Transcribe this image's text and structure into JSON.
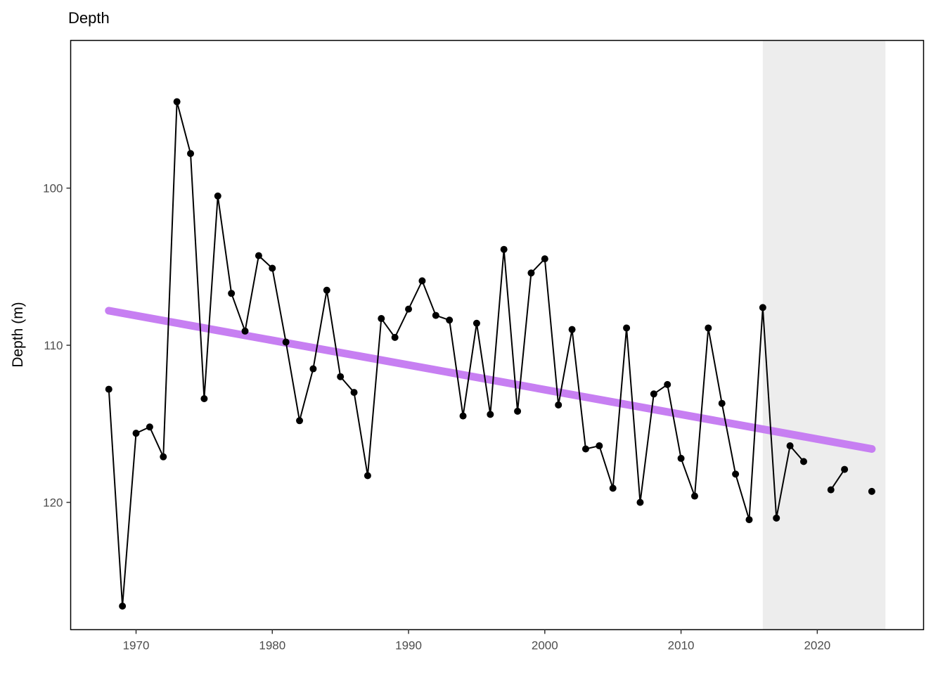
{
  "chart_data": {
    "type": "line",
    "title": "Depth",
    "xlabel": "",
    "ylabel": "Depth (m)",
    "y_reversed": true,
    "xlim": [
      1965.2,
      2027.8
    ],
    "ylim": [
      128.1,
      90.6
    ],
    "x_ticks": [
      1970,
      1980,
      1990,
      2000,
      2010,
      2020
    ],
    "y_ticks": [
      100,
      110,
      120
    ],
    "x_tick_labels": [
      "1970",
      "1980",
      "1990",
      "2000",
      "2010",
      "2020"
    ],
    "y_tick_labels": [
      "100",
      "110",
      "120"
    ],
    "grid": false,
    "legend": "none",
    "highlight_region": {
      "x": [
        2016,
        2025
      ],
      "color": "#ededed"
    },
    "series": [
      {
        "color": "#000000",
        "x": [
          1968,
          1969,
          1970,
          1971,
          1972,
          1973,
          1974,
          1975,
          1976,
          1977,
          1978,
          1979,
          1980,
          1981,
          1982,
          1983,
          1984,
          1985,
          1986,
          1987,
          1988,
          1989,
          1990,
          1991,
          1992,
          1993,
          1994,
          1995,
          1996,
          1997,
          1998,
          1999,
          2000,
          2001,
          2002,
          2003,
          2004,
          2005,
          2006,
          2007,
          2008,
          2009,
          2010,
          2011,
          2012,
          2013,
          2014,
          2015,
          2016,
          2017,
          2018,
          2019,
          2020,
          2021,
          2022,
          2023,
          2024
        ],
        "y": [
          112.8,
          126.6,
          115.6,
          115.2,
          117.1,
          94.5,
          97.8,
          113.4,
          100.5,
          106.7,
          109.1,
          104.3,
          105.1,
          109.8,
          114.8,
          111.5,
          106.5,
          112.0,
          113.0,
          118.3,
          108.3,
          109.5,
          107.7,
          105.9,
          108.1,
          108.4,
          114.5,
          108.6,
          114.4,
          103.9,
          114.2,
          105.4,
          104.5,
          113.8,
          109.0,
          116.6,
          116.4,
          119.1,
          108.9,
          120.0,
          113.1,
          112.5,
          117.2,
          119.6,
          108.9,
          113.7,
          118.2,
          121.1,
          107.6,
          121.0,
          116.4,
          117.4,
          null,
          119.2,
          117.9,
          null,
          119.3
        ]
      }
    ],
    "trend_line": {
      "color": "#c77ff2",
      "x": [
        1968,
        2024
      ],
      "y": [
        107.8,
        116.6
      ]
    }
  }
}
